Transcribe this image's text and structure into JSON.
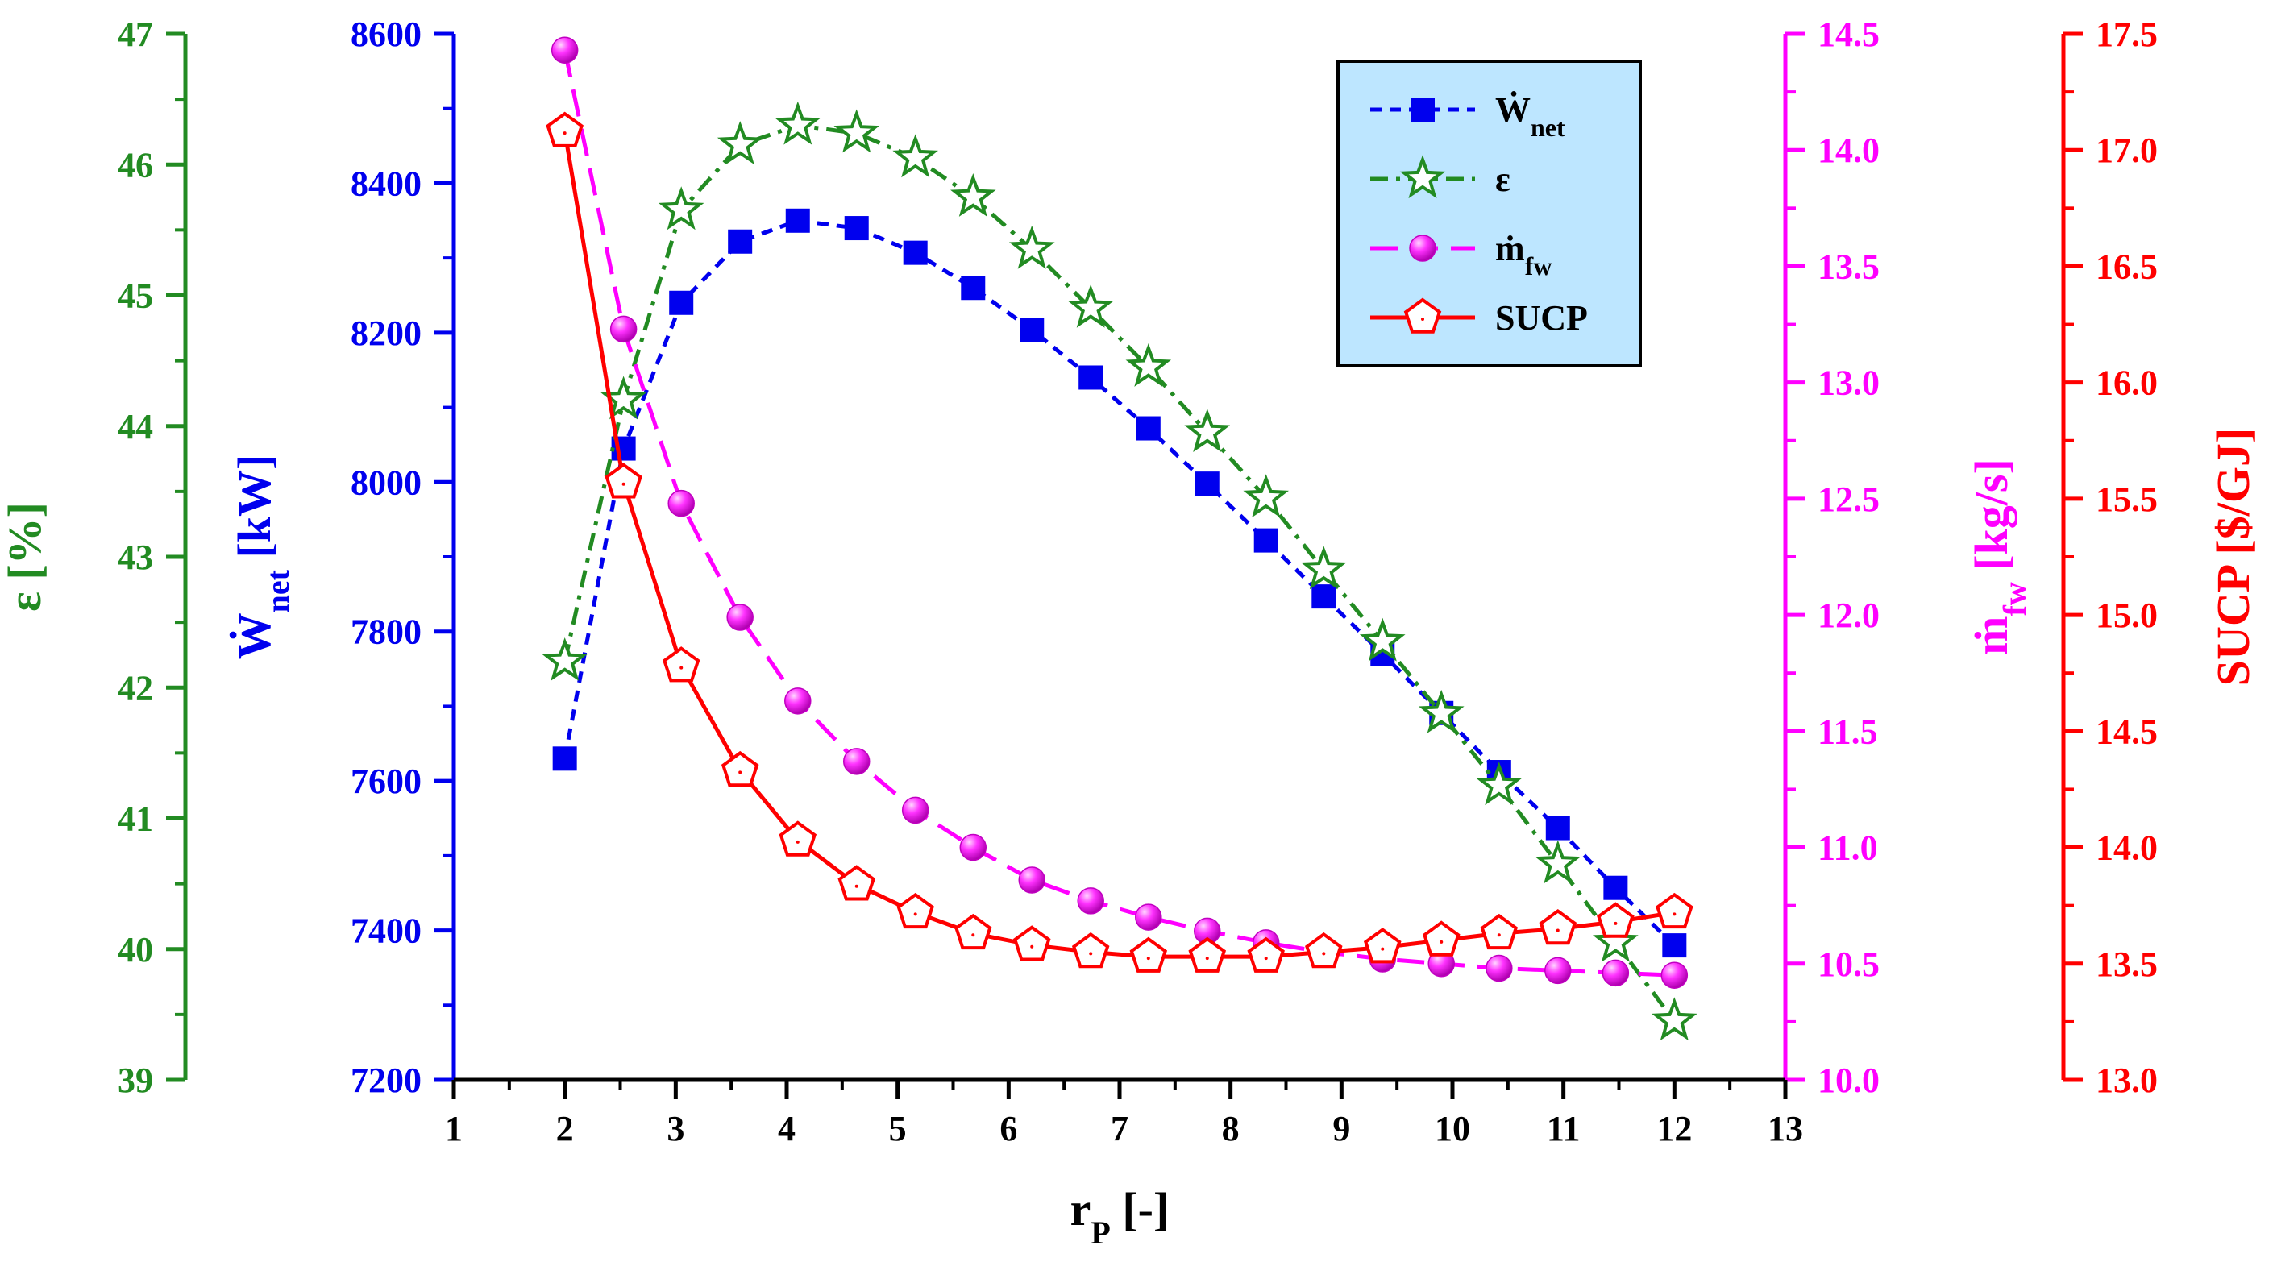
{
  "chart_data": {
    "type": "line",
    "x": [
      2.0,
      2.53,
      3.05,
      3.58,
      4.1,
      4.63,
      5.16,
      5.68,
      6.21,
      6.74,
      7.26,
      7.79,
      8.32,
      8.84,
      9.37,
      9.9,
      10.42,
      10.95,
      11.47,
      12.0
    ],
    "x_axis": {
      "label_main": "r",
      "label_sub": "P",
      "label_suffix": " [-]",
      "range": [
        1,
        13
      ],
      "ticks": [
        "1",
        "2",
        "3",
        "4",
        "5",
        "6",
        "7",
        "8",
        "9",
        "10",
        "11",
        "12",
        "13"
      ]
    },
    "axes": {
      "epsilon": {
        "label_main": "ε [%]",
        "color": "#228B22",
        "range": [
          39,
          47
        ],
        "ticks": [
          "39",
          "40",
          "41",
          "42",
          "43",
          "44",
          "45",
          "46",
          "47"
        ]
      },
      "wnet": {
        "label_main": "Ẇ",
        "label_sub": "net",
        "label_suffix": " [kW]",
        "color": "#0000EE",
        "range": [
          7200,
          8600
        ],
        "ticks": [
          "7200",
          "7400",
          "7600",
          "7800",
          "8000",
          "8200",
          "8400",
          "8600"
        ]
      },
      "mfw": {
        "label_main": "ṁ",
        "label_sub": "fw",
        "label_suffix": " [kg/s]",
        "color": "#FF00FF",
        "range": [
          10.0,
          14.5
        ],
        "ticks": [
          "10.0",
          "10.5",
          "11.0",
          "11.5",
          "12.0",
          "12.5",
          "13.0",
          "13.5",
          "14.0",
          "14.5"
        ]
      },
      "sucp": {
        "label_main": "SUCP [$/GJ]",
        "color": "#FF0000",
        "range": [
          13.0,
          17.5
        ],
        "ticks": [
          "13.0",
          "13.5",
          "14.0",
          "14.5",
          "15.0",
          "15.5",
          "16.0",
          "16.5",
          "17.0",
          "17.5"
        ]
      }
    },
    "series": [
      {
        "key": "wnet",
        "name_main": "Ẇ",
        "name_sub": "net",
        "axis": "wnet",
        "color": "#0000EE",
        "marker": "square",
        "dash": "dash",
        "values": [
          7630,
          8045,
          8240,
          8322,
          8350,
          8340,
          8307,
          8260,
          8204,
          8140,
          8072,
          7998,
          7922,
          7847,
          7770,
          7691,
          7612,
          7537,
          7457,
          7380
        ]
      },
      {
        "key": "epsilon",
        "name_main": "ε",
        "name_sub": "",
        "axis": "epsilon",
        "color": "#228B22",
        "marker": "star",
        "dash": "dashdot",
        "values": [
          42.2,
          44.2,
          45.65,
          46.15,
          46.3,
          46.24,
          46.05,
          45.75,
          45.35,
          44.9,
          44.45,
          43.95,
          43.45,
          42.9,
          42.35,
          41.8,
          41.25,
          40.65,
          40.05,
          39.45
        ]
      },
      {
        "key": "mfw",
        "name_main": "ṁ",
        "name_sub": "fw",
        "axis": "mfw",
        "color": "#FF00FF",
        "marker": "sphere",
        "dash": "longdash",
        "values": [
          14.43,
          13.23,
          12.48,
          11.99,
          11.63,
          11.37,
          11.16,
          11.0,
          10.86,
          10.77,
          10.7,
          10.64,
          10.59,
          10.55,
          10.52,
          10.5,
          10.48,
          10.47,
          10.46,
          10.45
        ]
      },
      {
        "key": "sucp",
        "name_main": "SUCP",
        "name_sub": "",
        "axis": "sucp",
        "color": "#FF0000",
        "marker": "pentagon",
        "dash": "solid",
        "values": [
          17.08,
          15.57,
          14.78,
          14.33,
          14.03,
          13.84,
          13.72,
          13.63,
          13.58,
          13.55,
          13.53,
          13.53,
          13.53,
          13.55,
          13.57,
          13.6,
          13.63,
          13.65,
          13.68,
          13.72
        ]
      }
    ],
    "legend_position": "top-center",
    "legend_background": "#BDE6FF",
    "grid": false
  }
}
